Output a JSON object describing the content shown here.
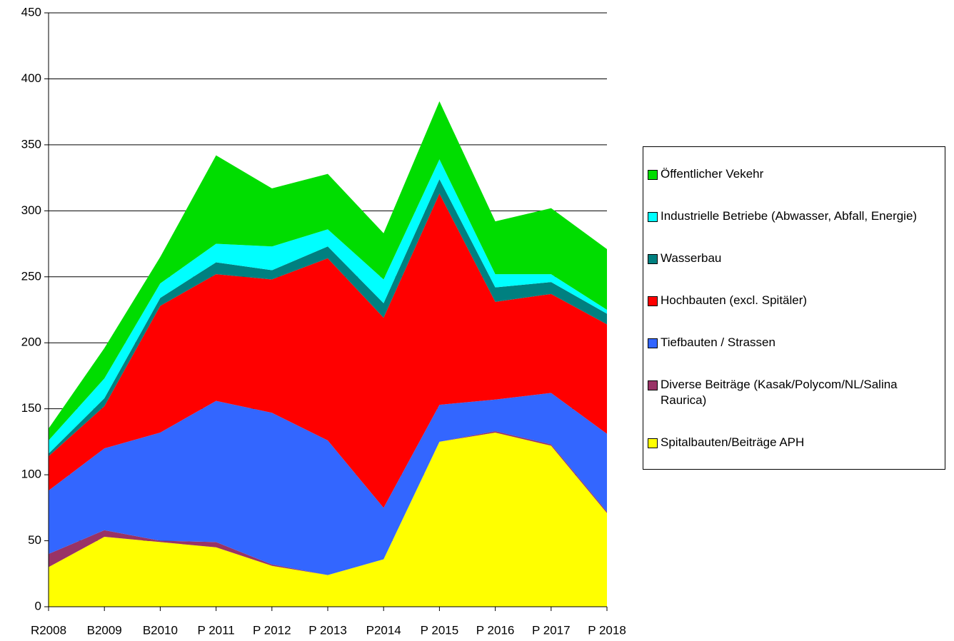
{
  "chart_data": {
    "type": "stacked-area",
    "categories": [
      "R2008",
      "B2009",
      "B2010",
      "P 2011",
      "P 2012",
      "P 2013",
      "P2014",
      "P 2015",
      "P 2016",
      "P 2017",
      "P 2018"
    ],
    "series": [
      {
        "name": "Spitalbauten/Beiträge APH",
        "color": "#ffff00",
        "values": [
          30,
          53,
          49,
          45,
          31,
          24,
          36,
          125,
          132,
          122,
          71
        ]
      },
      {
        "name": "Diverse Beiträge (Kasak/Polycom/NL/Salina Raurica)",
        "color": "#993366",
        "values": [
          10,
          5,
          1,
          4,
          1,
          0,
          0,
          0,
          1,
          1,
          1
        ]
      },
      {
        "name": "Tiefbauten / Strassen",
        "color": "#3366ff",
        "values": [
          48,
          62,
          82,
          107,
          115,
          102,
          39,
          28,
          24,
          39,
          59
        ]
      },
      {
        "name": "Hochbauten (excl. Spitäler)",
        "color": "#ff0000",
        "values": [
          26,
          32,
          96,
          96,
          101,
          138,
          144,
          160,
          74,
          75,
          83
        ]
      },
      {
        "name": "Wasserbau",
        "color": "#008080",
        "values": [
          2,
          6,
          6,
          9,
          7,
          9,
          11,
          11,
          11,
          9,
          8
        ]
      },
      {
        "name": "Industrielle Betriebe (Abwasser, Abfall, Energie)",
        "color": "#00ffff",
        "values": [
          10,
          15,
          11,
          14,
          18,
          13,
          18,
          15,
          10,
          6,
          3
        ]
      },
      {
        "name": "Öffentlicher Vekehr",
        "color": "#00dd00",
        "values": [
          9,
          23,
          20,
          67,
          44,
          42,
          35,
          44,
          40,
          50,
          46
        ]
      }
    ],
    "ylim": [
      0,
      450
    ],
    "yticks": [
      0,
      50,
      100,
      150,
      200,
      250,
      300,
      350,
      400,
      450
    ],
    "grid": true
  }
}
